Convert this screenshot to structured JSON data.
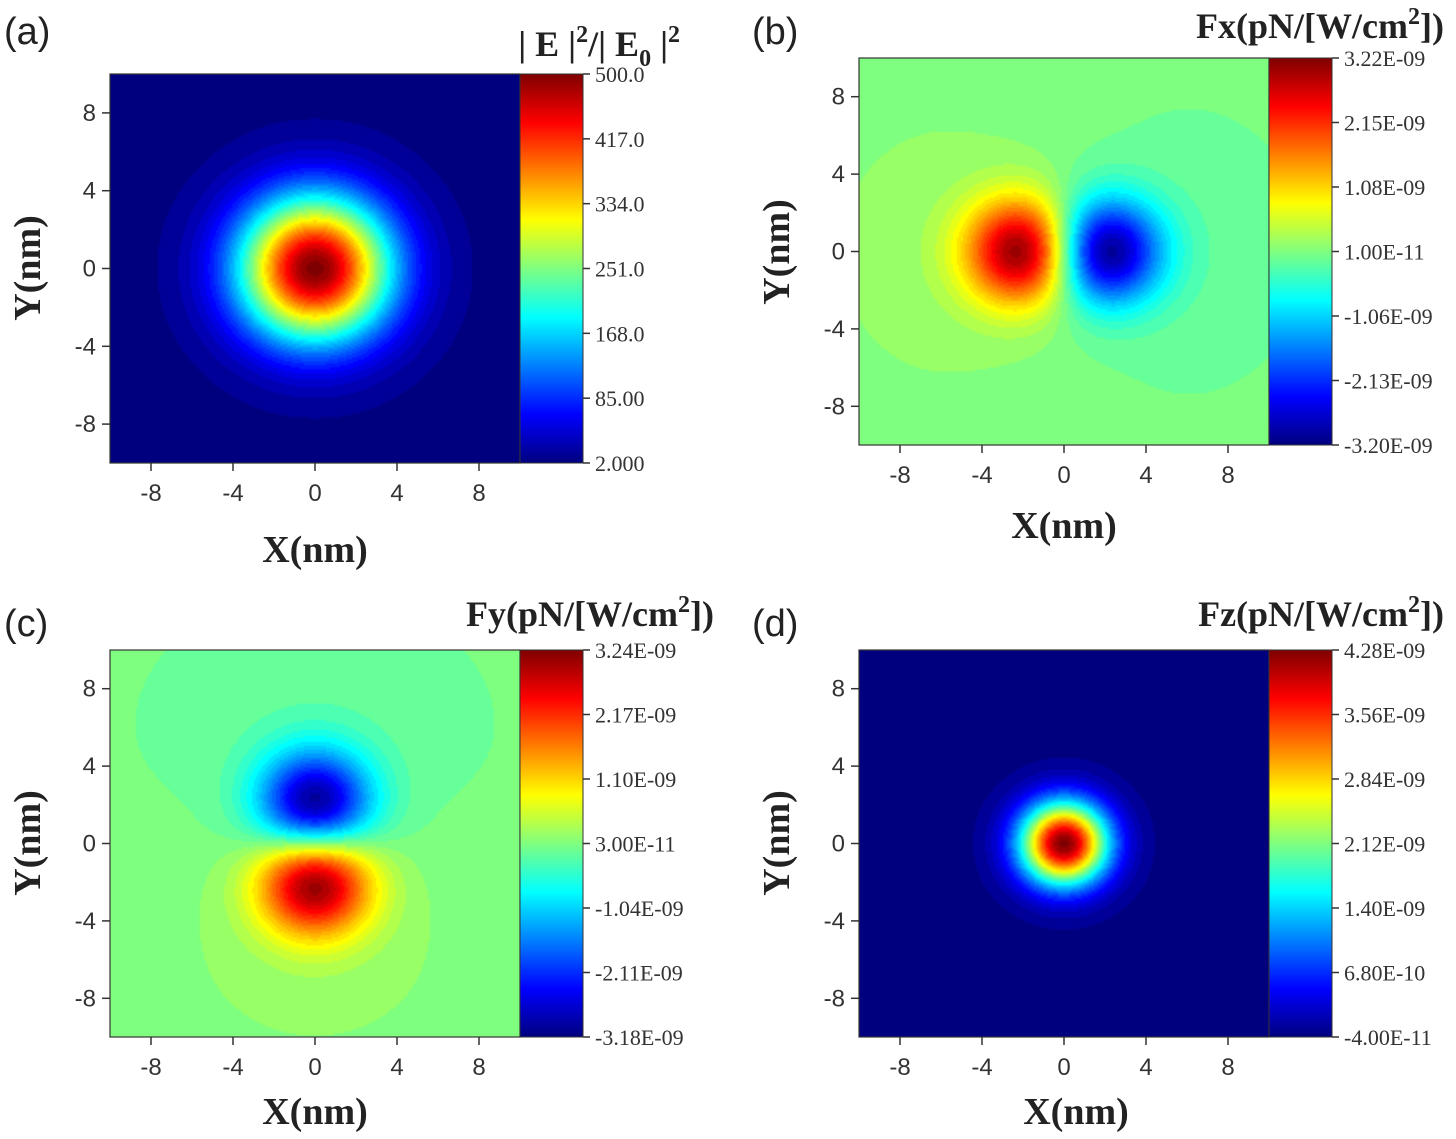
{
  "colors": {
    "jet_colormap": [
      "#00007f",
      "#0000ff",
      "#007fff",
      "#00ffff",
      "#7fff7f",
      "#ffff00",
      "#ff7f00",
      "#ff0000",
      "#7f0000"
    ],
    "background_field": "#86f070"
  },
  "chart_data": [
    {
      "panel_label": "(a)",
      "type": "heatmap",
      "field": "radial Gaussian peak at origin",
      "colorbar_title": {
        "main": "| E |",
        "sup1": "2",
        "mid": "/| E",
        "sub": "0",
        "end": " |",
        "sup2": "2"
      },
      "colorbar_labels": [
        "500.0",
        "417.0",
        "334.0",
        "251.0",
        "168.0",
        "85.00",
        "2.000"
      ],
      "colorbar_values": [
        500.0,
        417.0,
        334.0,
        251.0,
        168.0,
        85.0,
        2.0
      ],
      "zlim": [
        2.0,
        500.0
      ],
      "peak": {
        "x": 0,
        "y": 0,
        "value": 500.0,
        "sigma_nm": 2.6
      },
      "xlabel": "X(nm)",
      "ylabel": "Y(nm)",
      "xlim": [
        -10,
        10
      ],
      "ylim": [
        -10,
        10
      ],
      "xticks": [
        "-8",
        "-4",
        "0",
        "4",
        "8"
      ],
      "yticks": [
        "8",
        "4",
        "0",
        "-4",
        "-8"
      ]
    },
    {
      "panel_label": "(b)",
      "type": "heatmap",
      "field": "dipole along x: positive lobe at x=-2, negative lobe at x=+2",
      "colorbar_title": {
        "main": "Fx(pN/[W/cm",
        "sup1": "2",
        "end": "])"
      },
      "colorbar_labels": [
        "3.22E-09",
        "2.15E-09",
        "1.08E-09",
        "1.00E-11",
        "-1.06E-09",
        "-2.13E-09",
        "-3.20E-09"
      ],
      "colorbar_values": [
        3.22e-09,
        2.15e-09,
        1.08e-09,
        1e-11,
        -1.06e-09,
        -2.13e-09,
        -3.2e-09
      ],
      "zlim": [
        -3.2e-09,
        3.22e-09
      ],
      "lobes": [
        {
          "x": -2,
          "y": 0,
          "value": 3.22e-09
        },
        {
          "x": 2,
          "y": 0,
          "value": -3.2e-09
        }
      ],
      "xlabel": "X(nm)",
      "ylabel": "Y(nm)",
      "xlim": [
        -10,
        10
      ],
      "ylim": [
        -10,
        10
      ],
      "xticks": [
        "-8",
        "-4",
        "0",
        "4",
        "8"
      ],
      "yticks": [
        "8",
        "4",
        "0",
        "-4",
        "-8"
      ]
    },
    {
      "panel_label": "(c)",
      "type": "heatmap",
      "field": "dipole along y: negative lobe at y=+2, positive lobe at y=-2",
      "colorbar_title": {
        "main": "Fy(pN/[W/cm",
        "sup1": "2",
        "end": "])"
      },
      "colorbar_labels": [
        "3.24E-09",
        "2.17E-09",
        "1.10E-09",
        "3.00E-11",
        "-1.04E-09",
        "-2.11E-09",
        "-3.18E-09"
      ],
      "colorbar_values": [
        3.24e-09,
        2.17e-09,
        1.1e-09,
        3e-11,
        -1.04e-09,
        -2.11e-09,
        -3.18e-09
      ],
      "zlim": [
        -3.18e-09,
        3.24e-09
      ],
      "lobes": [
        {
          "x": 0,
          "y": 2,
          "value": -3.18e-09
        },
        {
          "x": 0,
          "y": -2,
          "value": 3.24e-09
        }
      ],
      "xlabel": "X(nm)",
      "ylabel": "Y(nm)",
      "xlim": [
        -10,
        10
      ],
      "ylim": [
        -10,
        10
      ],
      "xticks": [
        "-8",
        "-4",
        "0",
        "4",
        "8"
      ],
      "yticks": [
        "8",
        "4",
        "0",
        "-4",
        "-8"
      ]
    },
    {
      "panel_label": "(d)",
      "type": "heatmap",
      "field": "sharp peak at origin",
      "colorbar_title": {
        "main": "Fz(pN/[W/cm",
        "sup1": "2",
        "end": "])"
      },
      "colorbar_labels": [
        "4.28E-09",
        "3.56E-09",
        "2.84E-09",
        "2.12E-09",
        "1.40E-09",
        "6.80E-10",
        "-4.00E-11"
      ],
      "colorbar_values": [
        4.28e-09,
        3.56e-09,
        2.84e-09,
        2.12e-09,
        1.4e-09,
        6.8e-10,
        -4e-11
      ],
      "zlim": [
        -4e-11,
        4.28e-09
      ],
      "peak": {
        "x": 0,
        "y": 0,
        "value": 4.28e-09,
        "sigma_nm": 1.5
      },
      "xlabel": "X(nm)",
      "ylabel": "Y(nm)",
      "xlim": [
        -10,
        10
      ],
      "ylim": [
        -10,
        10
      ],
      "xticks": [
        "-8",
        "-4",
        "0",
        "4",
        "8"
      ],
      "yticks": [
        "8",
        "4",
        "0",
        "-4",
        "-8"
      ]
    }
  ]
}
